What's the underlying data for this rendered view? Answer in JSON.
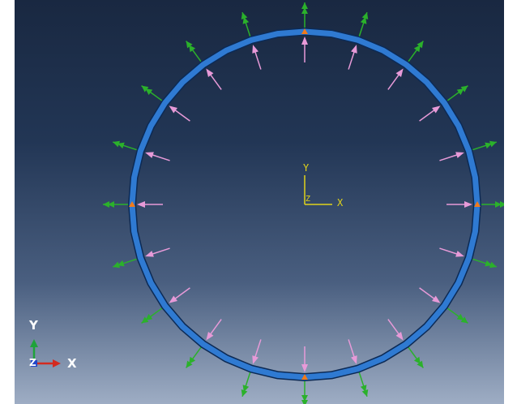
{
  "viewport": {
    "background_top": "#192841",
    "background_bottom": "#9eadc4"
  },
  "model": {
    "ring_color": "#2f7ad2",
    "ring_outline": "#0c2a55",
    "load_arrow_color": "#e79ad8",
    "bc_arrow_color": "#2bb12b",
    "node_marker_color": "#f07a1a",
    "load_count": 20,
    "bc_count": 20
  },
  "csys": {
    "color": "#e0d31a",
    "y_label": "Y",
    "x_label": "X",
    "z_label": "Z"
  },
  "triad": {
    "y_label": "Y",
    "x_label": "X",
    "z_label": "Z",
    "y_color": "#1fa33a",
    "x_color": "#d42a1f",
    "z_color": "#2146c8"
  }
}
